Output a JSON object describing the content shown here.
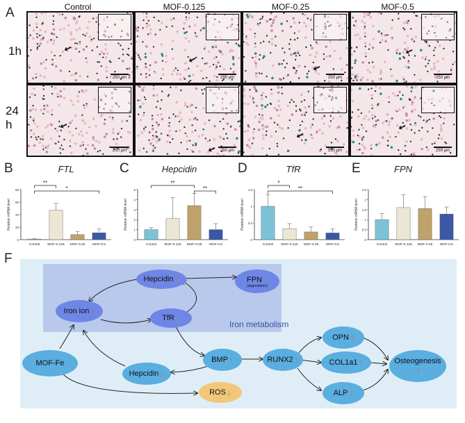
{
  "panel_letters": {
    "a": "A",
    "b": "B",
    "c": "C",
    "d": "D",
    "e": "E",
    "f": "F"
  },
  "micrographs": {
    "columns": [
      "Control",
      "MOF-0.125",
      "MOF-0.25",
      "MOF-0.5"
    ],
    "rows": [
      "1h",
      "24 h"
    ],
    "scale_label": "250 μm",
    "colors": {
      "stain_pink": "#e7b7c6",
      "stain_blue": "#2a8f8a",
      "background": "#f4e7ea"
    }
  },
  "chart_data": [
    {
      "type": "bar",
      "title": "FTL",
      "ylabel": "Relative mRNA level",
      "categories": [
        "Control",
        "MOF-0.125",
        "MOF-0.25",
        "MOF-0.5"
      ],
      "values": [
        1,
        47,
        8,
        11
      ],
      "errors": [
        0.5,
        11,
        5,
        6
      ],
      "ylim": [
        0,
        80
      ],
      "yticks": [
        0,
        20,
        40,
        60,
        80
      ],
      "colors": [
        "#7cc3d8",
        "#ece6d4",
        "#bfa36a",
        "#3b58a6"
      ],
      "significance": [
        {
          "from": 0,
          "to": 1,
          "label": "**"
        },
        {
          "from": 0,
          "to": 3,
          "label": "*"
        }
      ]
    },
    {
      "type": "bar",
      "title": "Hepcidin",
      "ylabel": "Relative mRNA level",
      "categories": [
        "Control",
        "MOF-0.125",
        "MOF-0.25",
        "MOF-0.5"
      ],
      "values": [
        1,
        2.1,
        3.4,
        1
      ],
      "errors": [
        0.2,
        2.1,
        1.2,
        0.6
      ],
      "ylim": [
        0,
        5
      ],
      "yticks": [
        0,
        1,
        2,
        3,
        4,
        5
      ],
      "colors": [
        "#7cc3d8",
        "#ece6d4",
        "#bfa36a",
        "#3b58a6"
      ],
      "significance": [
        {
          "from": 0,
          "to": 2,
          "label": "**"
        },
        {
          "from": 2,
          "to": 3,
          "label": "**"
        }
      ]
    },
    {
      "type": "bar",
      "title": "TfR",
      "ylabel": "Relative mRNA level",
      "categories": [
        "Control",
        "MOF-0.125",
        "MOF-0.25",
        "MOF-0.5"
      ],
      "values": [
        1,
        0.33,
        0.23,
        0.2
      ],
      "errors": [
        0.35,
        0.15,
        0.15,
        0.12
      ],
      "ylim": [
        0,
        1.5
      ],
      "yticks": [
        0,
        0.5,
        1.0,
        1.5
      ],
      "colors": [
        "#7cc3d8",
        "#ece6d4",
        "#bfa36a",
        "#3b58a6"
      ],
      "significance": [
        {
          "from": 0,
          "to": 1,
          "label": "*"
        },
        {
          "from": 0,
          "to": 3,
          "label": "**"
        }
      ]
    },
    {
      "type": "bar",
      "title": "FPN",
      "ylabel": "Relative mRNA level",
      "categories": [
        "Control",
        "MOF-0.125",
        "MOF-0.25",
        "MOF-0.5"
      ],
      "values": [
        1,
        1.6,
        1.55,
        1.28
      ],
      "errors": [
        0.3,
        0.65,
        0.6,
        0.35
      ],
      "ylim": [
        0,
        2.5
      ],
      "yticks": [
        0,
        0.5,
        1.0,
        1.5,
        2.0,
        2.5
      ],
      "colors": [
        "#7cc3d8",
        "#ece6d4",
        "#bfa36a",
        "#3b58a6"
      ],
      "significance": []
    }
  ],
  "diagram": {
    "region_label": "Iron metabolism",
    "nodes": {
      "hepcidin_top": {
        "label": "Hepcidin",
        "arrow": "↑"
      },
      "fpn": {
        "label": "FPN",
        "arrow": "↓",
        "note": "(degredation)"
      },
      "iron_ion": {
        "label": "Iron ion",
        "arrow": "↑"
      },
      "tfr": {
        "label": "TfR",
        "arrow": "↓"
      },
      "mof_fe": {
        "label": "MOF-Fe"
      },
      "hepcidin_bottom": {
        "label": "Hepcidin",
        "arrow": "↑"
      },
      "bmp": {
        "label": "BMP",
        "arrow": "↑"
      },
      "runx2": {
        "label": "RUNX2",
        "arrow": "↑"
      },
      "opn": {
        "label": "OPN",
        "arrow": "↑"
      },
      "col1a1": {
        "label": "COL1a1",
        "arrow": "↑"
      },
      "alp": {
        "label": "ALP",
        "arrow": "↑"
      },
      "osteogenesis": {
        "label": "Osteogenesis",
        "arrow": "↑"
      },
      "ros": {
        "label": "ROS",
        "arrow": "↓"
      }
    },
    "colors": {
      "background": "#dfeef6",
      "iron_region": "#b9c9ec",
      "up": "#e0662c",
      "down": "#4caf50"
    }
  }
}
